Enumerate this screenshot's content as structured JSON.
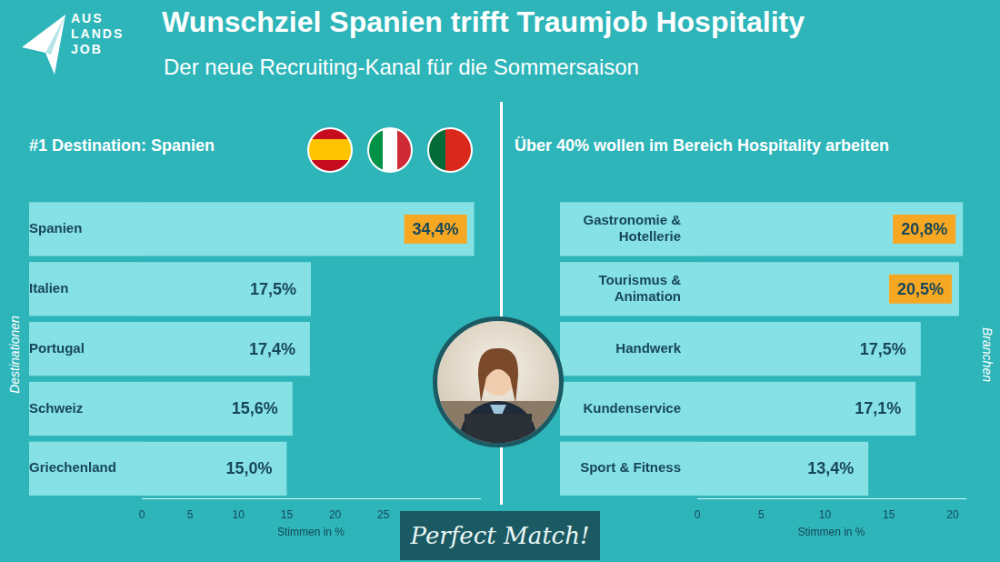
{
  "header": {
    "logo": [
      "AUS",
      "LANDS",
      "JOB"
    ],
    "title": "Wunschziel Spanien trifft Traumjob Hospitality",
    "subtitle": "Der neue Recruiting-Kanal für die Sommersaison"
  },
  "chart_data": [
    {
      "type": "bar",
      "orientation": "horizontal",
      "title": "#1 Destination: Spanien",
      "y_label": "Destinationen",
      "x_label": "Stimmen in %",
      "categories": [
        "Spanien",
        "Italien",
        "Portugal",
        "Schweiz",
        "Griechenland"
      ],
      "values": [
        34.4,
        17.5,
        17.4,
        15.6,
        15.0
      ],
      "value_labels": [
        "34,4%",
        "17,5%",
        "17,4%",
        "15,6%",
        "15,0%"
      ],
      "color": "#86e1e5",
      "xlim": [
        0,
        35
      ],
      "xticks": [
        0,
        5,
        10,
        15,
        20,
        25
      ],
      "grid": false,
      "data_labels": true
    },
    {
      "type": "bar",
      "orientation": "horizontal",
      "title": "Über 40% wollen im Bereich Hospitality arbeiten",
      "y_label": "Branchen",
      "x_label": "Stimmen in %",
      "categories": [
        "Gastronomie & Hotellerie",
        "Tourismus & Animation",
        "Handwerk",
        "Kundenservice",
        "Sport & Fitness"
      ],
      "values": [
        20.8,
        20.5,
        17.5,
        17.1,
        13.4
      ],
      "value_labels": [
        "20,8%",
        "20,5%",
        "17,5%",
        "17,1%",
        "13,4%"
      ],
      "color": "#86e1e5",
      "xlim": [
        0,
        21
      ],
      "xticks": [
        0,
        5,
        10,
        15,
        20
      ],
      "grid": false,
      "data_labels": true
    }
  ],
  "badge": "Perfect Match!"
}
